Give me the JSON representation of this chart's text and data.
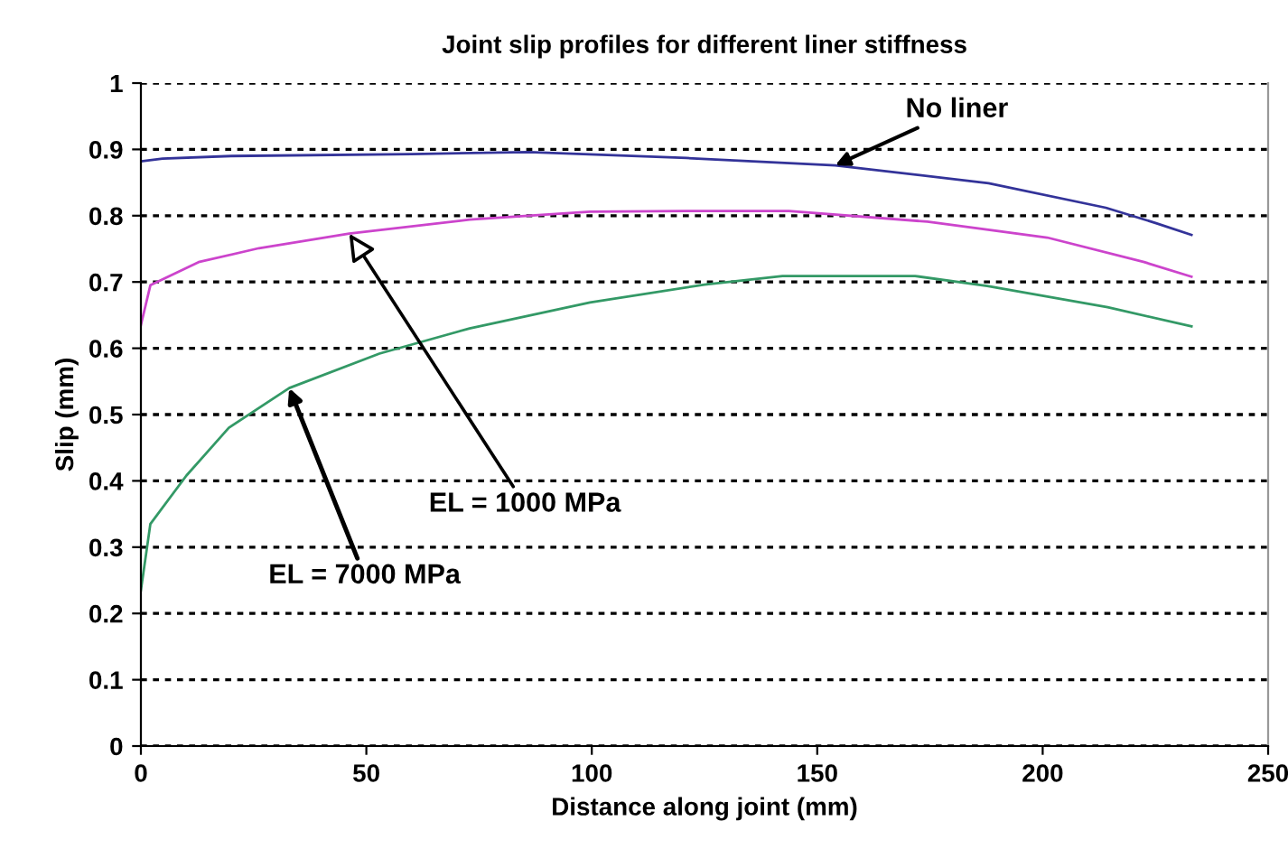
{
  "chart_data": {
    "type": "line",
    "title": "Joint slip profiles for different liner stiffness",
    "xlabel": "Distance along joint (mm)",
    "ylabel": "Slip (mm)",
    "xlim": [
      0,
      250
    ],
    "xticks": [
      0,
      50,
      100,
      150,
      200,
      250
    ],
    "ylim": [
      0,
      1
    ],
    "yticks": [
      0,
      0.1,
      0.2,
      0.3,
      0.4,
      0.5,
      0.6,
      0.7,
      0.8,
      0.9,
      1
    ],
    "grid": "y",
    "line_style": "solid",
    "series": [
      {
        "color": "#333399",
        "x": [
          0,
          4.8,
          20,
          60,
          86,
          121,
          154,
          188,
          214,
          225,
          233
        ],
        "values": [
          0.882,
          0.886,
          0.89,
          0.893,
          0.896,
          0.887,
          0.876,
          0.849,
          0.812,
          0.789,
          0.771
        ]
      },
      {
        "color": "#cc44cc",
        "x": [
          0,
          2.1,
          12.8,
          26.2,
          46.2,
          72.9,
          99.6,
          121,
          143.7,
          174.4,
          201,
          222.5,
          233
        ],
        "values": [
          0.635,
          0.695,
          0.73,
          0.751,
          0.773,
          0.794,
          0.806,
          0.807,
          0.807,
          0.791,
          0.767,
          0.73,
          0.708
        ]
      },
      {
        "color": "#339966",
        "x": [
          0,
          2.1,
          10.1,
          19.5,
          32.9,
          52.9,
          72.9,
          99.6,
          125,
          142.3,
          171.7,
          187.7,
          214.4,
          233
        ],
        "values": [
          0.235,
          0.335,
          0.408,
          0.48,
          0.54,
          0.592,
          0.63,
          0.669,
          0.696,
          0.709,
          0.709,
          0.694,
          0.662,
          0.633
        ]
      }
    ],
    "annotations": [
      {
        "text": "No liner",
        "x": 154,
        "y": 0.876
      },
      {
        "text": "EL = 1000 MPa",
        "x": 46.2,
        "y": 0.773
      },
      {
        "text": "EL = 7000 MPa",
        "x": 32.9,
        "y": 0.54
      }
    ]
  }
}
